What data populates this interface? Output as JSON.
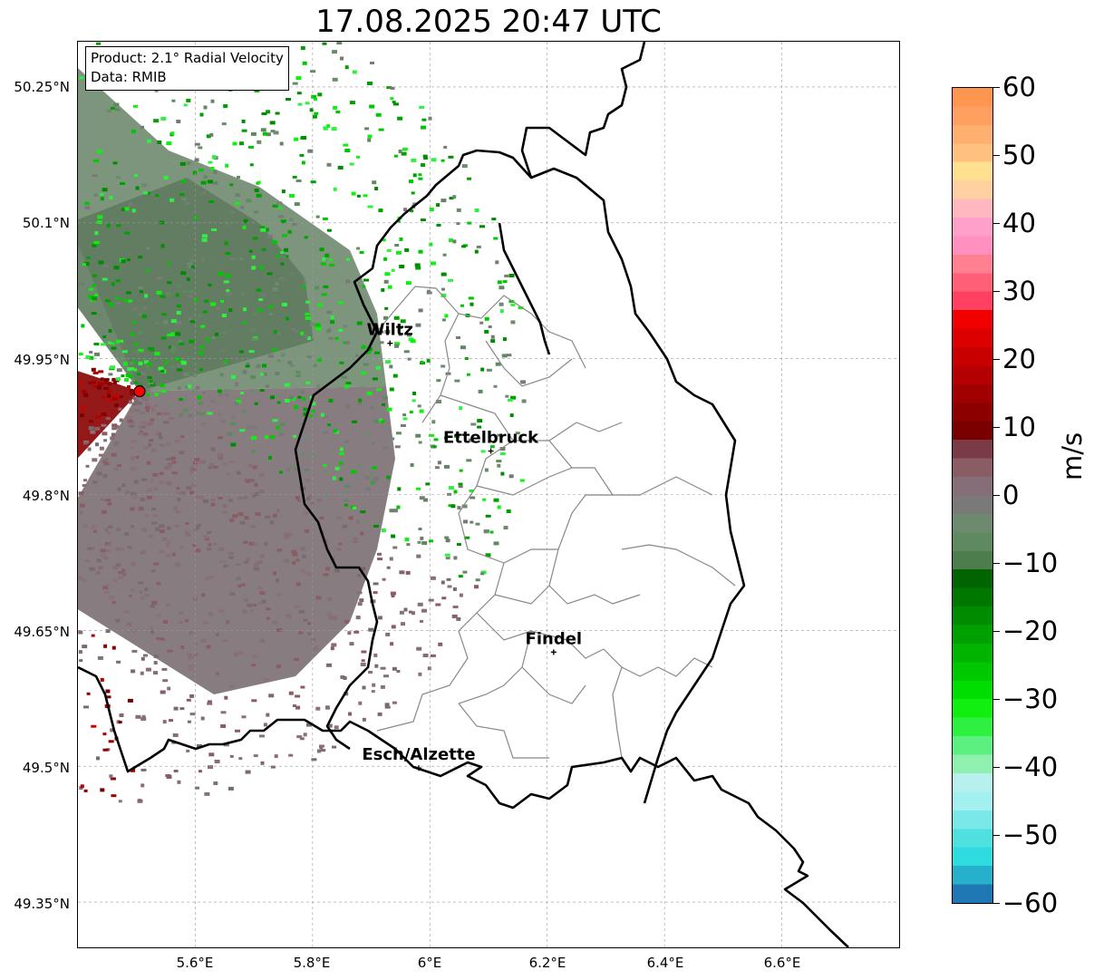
{
  "title": "17.08.2025 20:47 UTC",
  "info": {
    "product": "Product: 2.1° Radial Velocity",
    "data": "Data: RMIB"
  },
  "map": {
    "lon_range": [
      5.4,
      6.8
    ],
    "lat_range": [
      49.3,
      50.3
    ],
    "lat_ticks": [
      "50.25°N",
      "50.1°N",
      "49.95°N",
      "49.8°N",
      "49.65°N",
      "49.5°N",
      "49.35°N"
    ],
    "lon_ticks": [
      "5.6°E",
      "5.8°E",
      "6°E",
      "6.2°E",
      "6.4°E",
      "6.6°E"
    ],
    "radar_site": {
      "lon": 5.505,
      "lat": 49.914
    },
    "cities": [
      {
        "name": "Wiltz",
        "lon": 5.932,
        "lat": 49.967
      },
      {
        "name": "Ettelbruck",
        "lon": 6.104,
        "lat": 49.848
      },
      {
        "name": "Findel",
        "lon": 6.211,
        "lat": 49.626
      },
      {
        "name": "Esch/Alzette",
        "lon": 5.981,
        "lat": 49.498
      }
    ]
  },
  "colorbar": {
    "min": -60,
    "max": 60,
    "unit": "m/s",
    "ticks": [
      "60",
      "50",
      "40",
      "30",
      "20",
      "10",
      "0",
      "−10",
      "−20",
      "−30",
      "−40",
      "−50",
      "−60"
    ],
    "colors": [
      "#1f78b4",
      "#26b0cc",
      "#2edce0",
      "#4fe0e0",
      "#7ae8e8",
      "#a3f0f0",
      "#b8f0f0",
      "#90f0b0",
      "#5cf080",
      "#2ef040",
      "#10f010",
      "#00dd00",
      "#00c800",
      "#00b400",
      "#00a000",
      "#008c00",
      "#007800",
      "#006400",
      "#4d7d4d",
      "#5f8a5f",
      "#6e8a6e",
      "#7a7878",
      "#866e78",
      "#8a5c64",
      "#7a3a46",
      "#7a0000",
      "#8c0000",
      "#a00000",
      "#b40000",
      "#c80000",
      "#dc0000",
      "#f00000",
      "#ff4060",
      "#ff6078",
      "#ff8090",
      "#ff90c0",
      "#ffa0c8",
      "#ffb8c0",
      "#ffd0a0",
      "#ffe090",
      "#ffc080",
      "#ffb070",
      "#ffa060",
      "#ff9650"
    ],
    "accent_colors": {
      "approaching": "#00a000",
      "receding": "#a00000",
      "near_zero": "#6e7e6e"
    }
  }
}
